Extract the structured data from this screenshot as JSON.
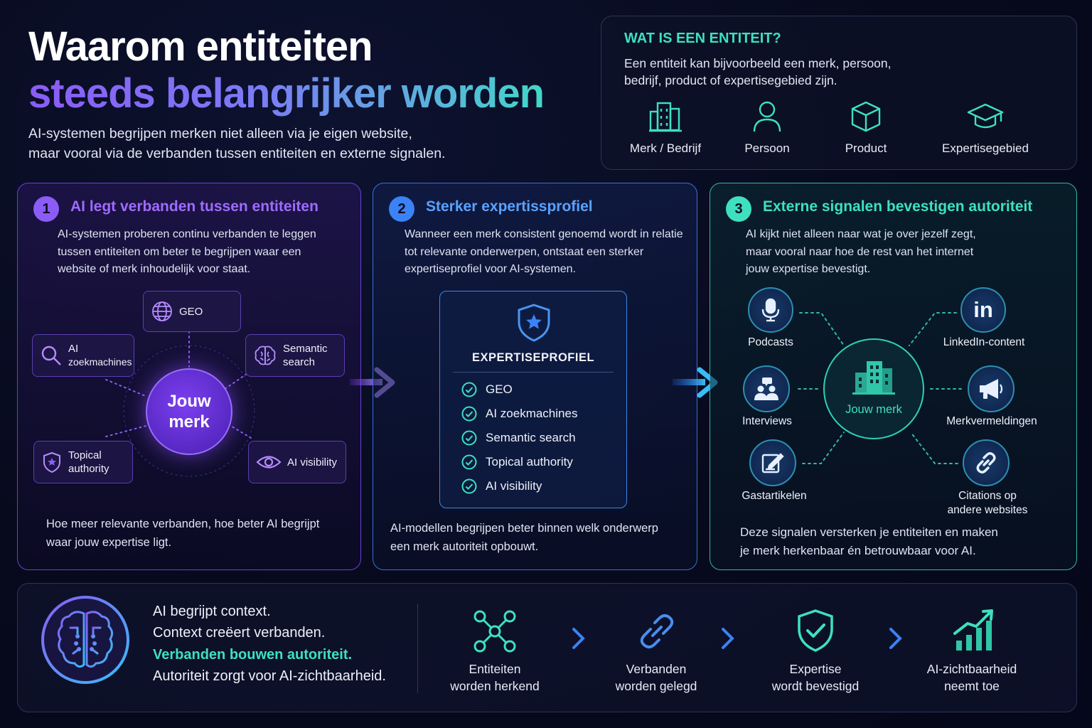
{
  "header": {
    "title_line1": "Waarom entiteiten",
    "title_line2": "steeds belangrijker worden",
    "subtitle_line1": "AI-systemen begrijpen merken niet alleen via je eigen website,",
    "subtitle_line2": "maar vooral via de verbanden tussen entiteiten en externe signalen."
  },
  "what_is": {
    "heading": "WAT IS EEN ENTITEIT?",
    "desc_line1": "Een entiteit kan bijvoorbeeld een merk, persoon,",
    "desc_line2": "bedrijf, product of expertisegebied zijn.",
    "items": [
      {
        "label": "Merk / Bedrijf",
        "icon": "building-icon"
      },
      {
        "label": "Persoon",
        "icon": "person-icon"
      },
      {
        "label": "Product",
        "icon": "box-icon"
      },
      {
        "label": "Expertisegebied",
        "icon": "graduation-cap-icon"
      }
    ]
  },
  "panel1": {
    "number": "1",
    "title": "AI legt verbanden tussen entiteiten",
    "desc_line1": "AI-systemen proberen continu verbanden te leggen",
    "desc_line2": "tussen entiteiten om beter te begrijpen waar een",
    "desc_line3": "website of merk inhoudelijk voor staat.",
    "hub_line1": "Jouw",
    "hub_line2": "merk",
    "nodes": {
      "geo": "GEO",
      "ai_line1": "AI",
      "ai_line2": "zoekmachines",
      "semantic_line1": "Semantic",
      "semantic_line2": "search",
      "topical_line1": "Topical",
      "topical_line2": "authority",
      "visibility": "AI visibility"
    },
    "foot_line1": "Hoe meer relevante verbanden, hoe beter AI begrijpt",
    "foot_line2": "waar jouw expertise ligt."
  },
  "panel2": {
    "number": "2",
    "title": "Sterker expertissprofiel",
    "desc_line1": "Wanneer een merk consistent genoemd wordt in relatie",
    "desc_line2": "tot relevante onderwerpen, ontstaat een sterker",
    "desc_line3": "expertiseprofiel voor AI-systemen.",
    "profile_heading": "EXPERTISEPROFIEL",
    "checks": [
      "GEO",
      "AI zoekmachines",
      "Semantic search",
      "Topical authority",
      "AI visibility"
    ],
    "foot_line1": "AI-modellen begrijpen beter binnen welk onderwerp",
    "foot_line2": "een merk autoriteit opbouwt."
  },
  "panel3": {
    "number": "3",
    "title": "Externe signalen bevestigen autoriteit",
    "desc_line1": "AI kijkt niet alleen naar wat je over jezelf zegt,",
    "desc_line2": "maar vooral naar hoe de rest van het internet",
    "desc_line3": "jouw expertise bevestigt.",
    "hub": "Jouw merk",
    "signals": {
      "podcasts": "Podcasts",
      "linkedin": "LinkedIn-content",
      "interviews": "Interviews",
      "mentions": "Merkvermeldingen",
      "guest": "Gastartikelen",
      "citations_line1": "Citations op",
      "citations_line2": "andere websites"
    },
    "foot_line1": "Deze signalen versterken je entiteiten en maken",
    "foot_line2": "je merk herkenbaar én betrouwbaar voor AI."
  },
  "bottom": {
    "line1": "AI begrijpt context.",
    "line2": "Context creëert verbanden.",
    "line3": "Verbanden bouwen autoriteit.",
    "line4": "Autoriteit zorgt voor AI-zichtbaarheid.",
    "steps": [
      {
        "line1": "Entiteiten",
        "line2": "worden herkend"
      },
      {
        "line1": "Verbanden",
        "line2": "worden gelegd"
      },
      {
        "line1": "Expertise",
        "line2": "wordt bevestigd"
      },
      {
        "line1": "AI-zichtbaarheid",
        "line2": "neemt toe"
      }
    ]
  },
  "colors": {
    "purple": "#8b5cf6",
    "blue": "#3b82f6",
    "teal": "#3ee0c0"
  }
}
